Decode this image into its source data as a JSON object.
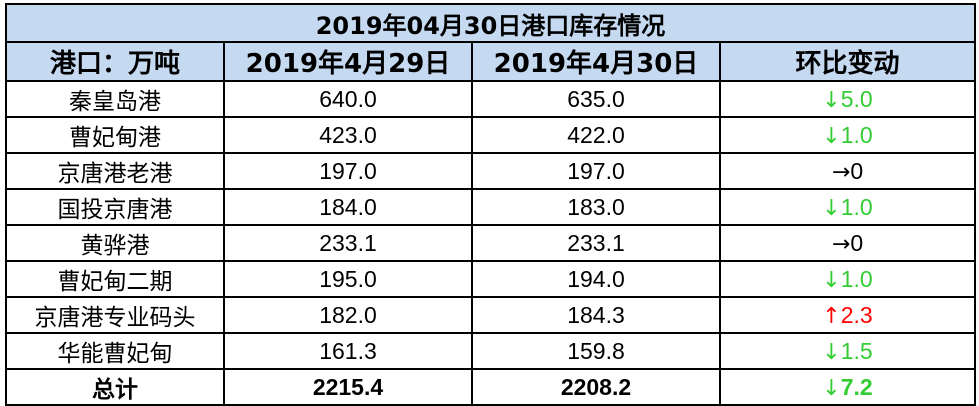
{
  "chart_data": {
    "type": "table",
    "title": "2019年04月30日港口库存情况",
    "columns": [
      "港口：万吨",
      "2019年4月29日",
      "2019年4月30日",
      "环比变动"
    ],
    "rows": [
      {
        "port": "秦皇岛港",
        "apr29": "640.0",
        "apr30": "635.0",
        "arrow": "↓",
        "change": "5.0",
        "direction": "down"
      },
      {
        "port": "曹妃甸港",
        "apr29": "423.0",
        "apr30": "422.0",
        "arrow": "↓",
        "change": "1.0",
        "direction": "down"
      },
      {
        "port": "京唐港老港",
        "apr29": "197.0",
        "apr30": "197.0",
        "arrow": "→",
        "change": "0",
        "direction": "flat"
      },
      {
        "port": "国投京唐港",
        "apr29": "184.0",
        "apr30": "183.0",
        "arrow": "↓",
        "change": "1.0",
        "direction": "down"
      },
      {
        "port": "黄骅港",
        "apr29": "233.1",
        "apr30": "233.1",
        "arrow": "→",
        "change": "0",
        "direction": "flat"
      },
      {
        "port": "曹妃甸二期",
        "apr29": "195.0",
        "apr30": "194.0",
        "arrow": "↓",
        "change": "1.0",
        "direction": "down"
      },
      {
        "port": "京唐港专业码头",
        "apr29": "182.0",
        "apr30": "184.3",
        "arrow": "↑",
        "change": "2.3",
        "direction": "up"
      },
      {
        "port": "华能曹妃甸",
        "apr29": "161.3",
        "apr30": "159.8",
        "arrow": "↓",
        "change": "1.5",
        "direction": "down"
      }
    ],
    "total": {
      "label": "总计",
      "apr29": "2215.4",
      "apr30": "2208.2",
      "arrow": "↓",
      "change": "7.2",
      "direction": "down"
    }
  },
  "colors": {
    "header_bg": "#c5d9f1",
    "down": "#33cc33",
    "up": "#ff0000",
    "flat": "#000000"
  }
}
